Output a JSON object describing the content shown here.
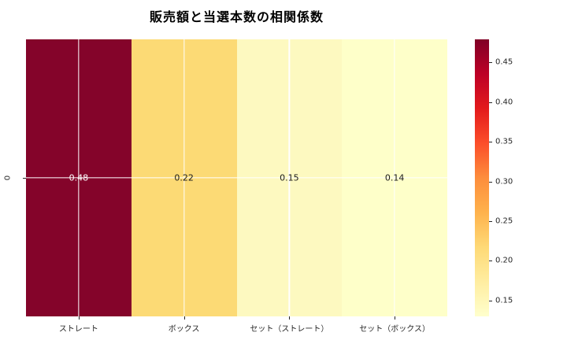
{
  "figure": {
    "background": "#ffffff",
    "text_color": "#262626"
  },
  "chart_data": {
    "type": "heatmap",
    "title": "販売額と当選本数の相関係数",
    "x_tick_labels": [
      "ストレート",
      "ボックス",
      "セット（ストレート）",
      "セット（ボックス）"
    ],
    "y_tick_labels": [
      "0"
    ],
    "values": [
      [
        0.48,
        0.22,
        0.15,
        0.14
      ]
    ],
    "annotations": [
      [
        "0.48",
        "0.22",
        "0.15",
        "0.14"
      ]
    ],
    "cell_colors": [
      [
        "#84042a",
        "#fcda75",
        "#fdf9c0",
        "#feffc9"
      ]
    ],
    "annotation_colors": [
      [
        "#ffffff",
        "#1a1a1a",
        "#1a1a1a",
        "#1a1a1a"
      ]
    ],
    "grid": true,
    "colormap": "YlOrRd",
    "legend_position": "colorbar-right",
    "colorbar": {
      "min": 0.13,
      "max": 0.479,
      "ticks": [
        0.45,
        0.4,
        0.35,
        0.3,
        0.25,
        0.2,
        0.15
      ],
      "tick_labels": [
        "0.45",
        "0.40",
        "0.35",
        "0.30",
        "0.25",
        "0.20",
        "0.15"
      ],
      "gradient_stops_top_to_bottom": [
        "#800026",
        "#bd0026",
        "#e31a1c",
        "#fc4e2a",
        "#fd8d3c",
        "#feb24c",
        "#fed976",
        "#ffeda0",
        "#ffffcc"
      ]
    }
  }
}
